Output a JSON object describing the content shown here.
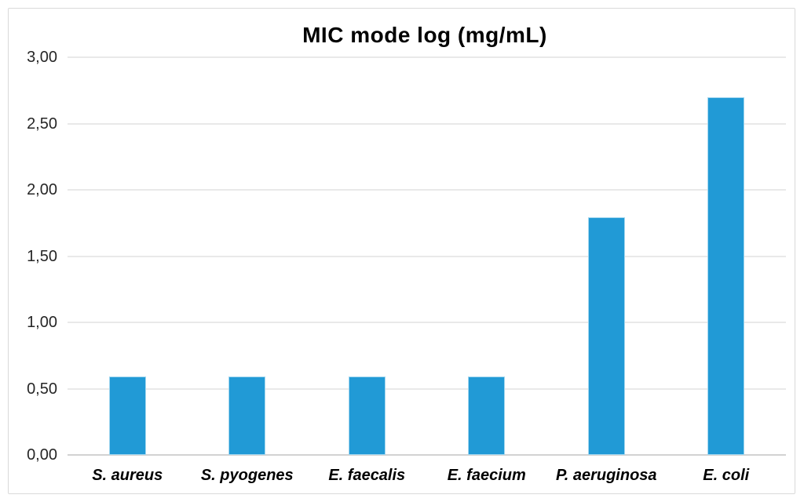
{
  "chart_data": {
    "type": "bar",
    "title": "MIC mode log (mg/mL)",
    "xlabel": "",
    "ylabel": "",
    "categories": [
      "S. aureus",
      "S. pyogenes",
      "E. faecalis",
      "E. faecium",
      "P. aeruginosa",
      "E. coli"
    ],
    "values": [
      0.59,
      0.59,
      0.59,
      0.59,
      1.79,
      2.7
    ],
    "ylim": [
      0,
      3
    ],
    "ytick_step": 0.5,
    "ytick_labels": [
      "0,00",
      "0,50",
      "1,00",
      "1,50",
      "2,00",
      "2,50",
      "3,00"
    ],
    "decimal_separator": ",",
    "grid": "horizontal",
    "legend": "none",
    "colors": {
      "bar_fill": "#219ad6",
      "bar_border": "#a3d7ef",
      "gridline": "#e9e9e9",
      "axis_line": "#d2d2d2",
      "title_text": "#000000",
      "tick_text": "#262626",
      "frame_border": "#d9d9d9",
      "background": "#ffffff"
    }
  }
}
